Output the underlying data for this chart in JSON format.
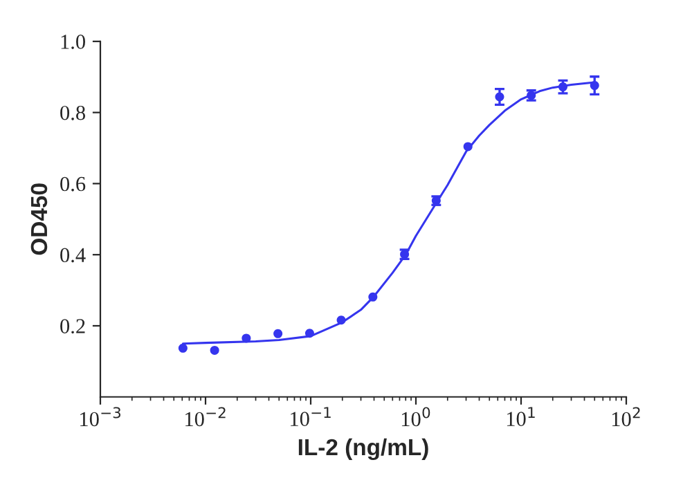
{
  "chart_data": {
    "type": "scatter",
    "xlabel": "IL-2 (ng/mL)",
    "ylabel": "OD450",
    "log": "x",
    "xlim": [
      0.001,
      100
    ],
    "xticks": [
      {
        "value": 0.001,
        "label": "10$^{−3}$"
      },
      {
        "value": 0.01,
        "label": "10$^{−2}$"
      },
      {
        "value": 0.1,
        "label": "10$^{−1}$"
      },
      {
        "value": 1,
        "label": "10$^{0}$"
      },
      {
        "value": 10,
        "label": "10$^{1}$"
      },
      {
        "value": 100,
        "label": "10$^{2}$"
      }
    ],
    "ylim": [
      0,
      1.0
    ],
    "yticks": [
      0.2,
      0.4,
      0.6,
      0.8,
      {
        "value": 1.0,
        "label": "1.0"
      }
    ],
    "grid": false,
    "legend": false,
    "marker": "circle",
    "series": [
      {
        "color": "#3535ee",
        "x": [
          0.0061,
          0.0122,
          0.0244,
          0.0488,
          0.0977,
          0.195,
          0.39,
          0.78,
          1.56,
          3.125,
          6.25,
          12.5,
          25,
          50
        ],
        "values": [
          0.137,
          0.131,
          0.165,
          0.178,
          0.179,
          0.216,
          0.281,
          0.401,
          0.552,
          0.704,
          0.844,
          0.848,
          0.872,
          0.876
        ],
        "errors": [
          null,
          null,
          null,
          null,
          null,
          null,
          null,
          0.013,
          0.012,
          null,
          0.022,
          0.014,
          0.018,
          0.025
        ]
      },
      {
        "type": "line",
        "color": "#3535ee",
        "marker": "none",
        "line_style": "solid",
        "x": [
          0.0061,
          0.01,
          0.03,
          0.05,
          0.1,
          0.2,
          0.3,
          0.4,
          0.6,
          0.8,
          1.0,
          1.5,
          2,
          3,
          4,
          5,
          7,
          10,
          15,
          20,
          30,
          50
        ],
        "values": [
          0.15,
          0.152,
          0.156,
          0.16,
          0.171,
          0.21,
          0.245,
          0.283,
          0.349,
          0.4,
          0.453,
          0.537,
          0.596,
          0.69,
          0.735,
          0.765,
          0.805,
          0.837,
          0.86,
          0.87,
          0.878,
          0.885
        ]
      }
    ]
  }
}
